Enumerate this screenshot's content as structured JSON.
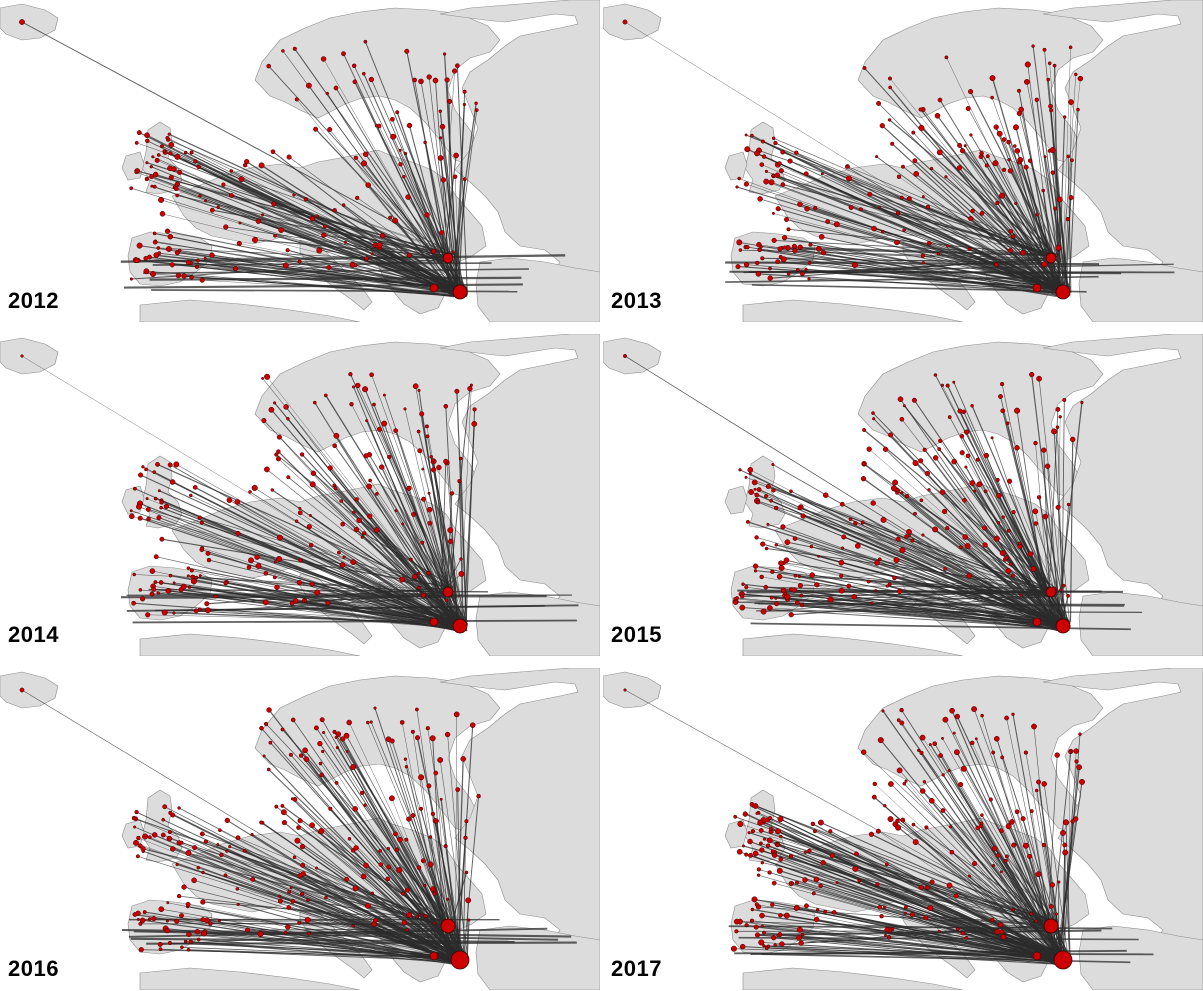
{
  "figure": {
    "panels": [
      {
        "year": "2012"
      },
      {
        "year": "2013"
      },
      {
        "year": "2014"
      },
      {
        "year": "2015"
      },
      {
        "year": "2016"
      },
      {
        "year": "2017"
      }
    ]
  },
  "colors": {
    "land": "#dcdcdc",
    "coast": "#8c8c8c",
    "sea": "#ffffff",
    "flow": "#2b2b2b",
    "node_fill": "#cc0000",
    "node_stroke": "#3a0000",
    "label": "#000000"
  }
}
